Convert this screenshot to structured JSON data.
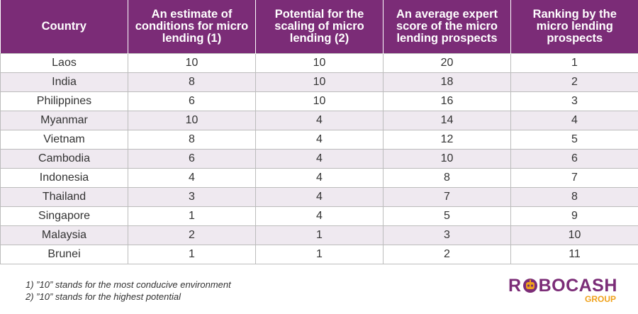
{
  "chart_data": {
    "type": "table",
    "columns": [
      "Country",
      "An estimate of conditions for micro lending (1)",
      "Potential for the scaling of micro lending (2)",
      "An average expert score of the micro lending prospects",
      "Ranking by the micro lending prospects"
    ],
    "rows": [
      [
        "Laos",
        "10",
        "10",
        "20",
        "1"
      ],
      [
        "India",
        "8",
        "10",
        "18",
        "2"
      ],
      [
        "Philippines",
        "6",
        "10",
        "16",
        "3"
      ],
      [
        "Myanmar",
        "10",
        "4",
        "14",
        "4"
      ],
      [
        "Vietnam",
        "8",
        "4",
        "12",
        "5"
      ],
      [
        "Cambodia",
        "6",
        "4",
        "10",
        "6"
      ],
      [
        "Indonesia",
        "4",
        "4",
        "8",
        "7"
      ],
      [
        "Thailand",
        "3",
        "4",
        "7",
        "8"
      ],
      [
        "Singapore",
        "1",
        "4",
        "5",
        "9"
      ],
      [
        "Malaysia",
        "2",
        "1",
        "3",
        "10"
      ],
      [
        "Brunei",
        "1",
        "1",
        "2",
        "11"
      ]
    ]
  },
  "footnotes": [
    "1) ”10” stands for the most conducive environment",
    "2) ”10” stands for the highest potential"
  ],
  "logo": {
    "main_before": "R",
    "main_after": "BOCASH",
    "sub": "GROUP"
  },
  "colors": {
    "header_bg": "#7b2c77",
    "stripe_bg": "#efe9f0",
    "logo_accent": "#f0a21b"
  }
}
